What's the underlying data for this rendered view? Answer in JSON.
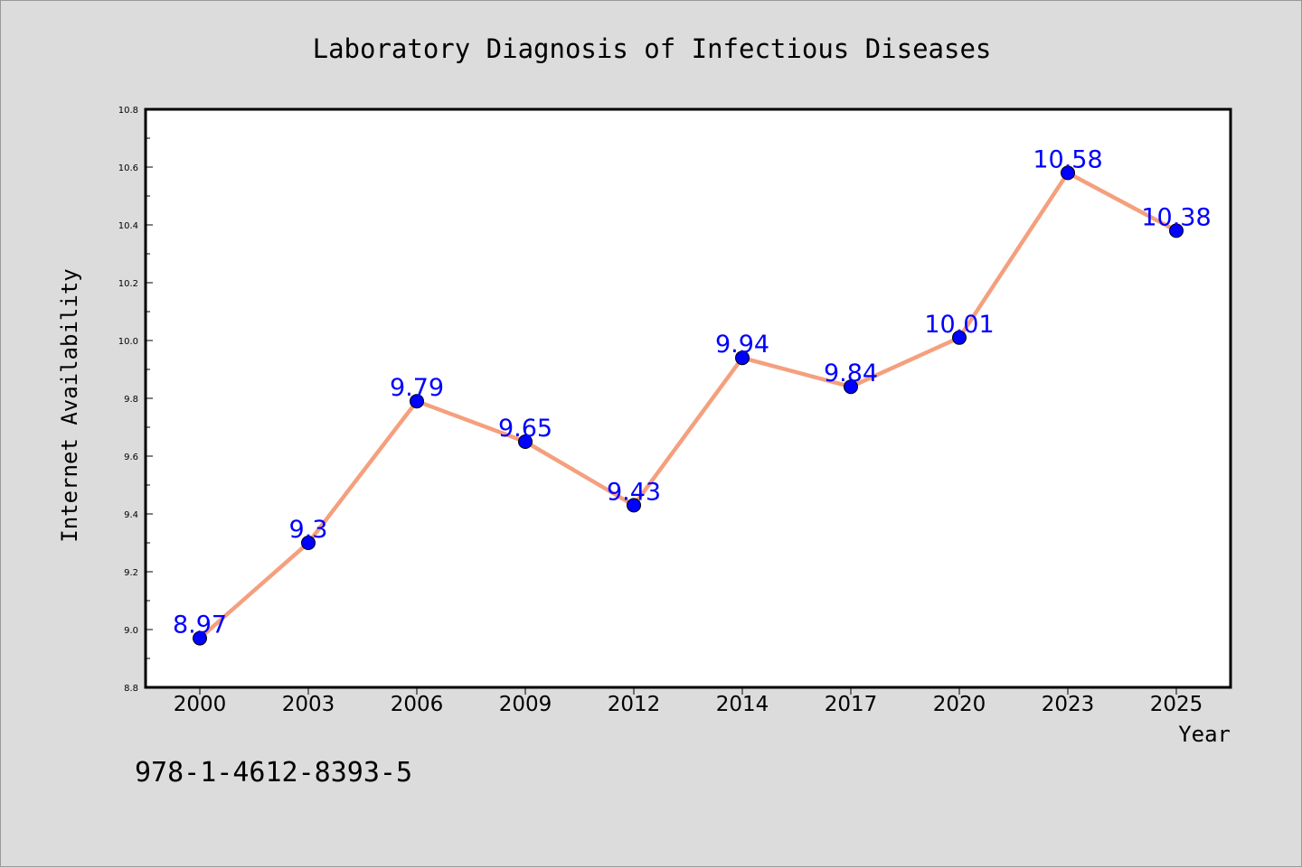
{
  "chart_data": {
    "type": "line",
    "title": "Laboratory Diagnosis of Infectious Diseases",
    "xlabel": "Year",
    "ylabel": "Internet Availability",
    "categories": [
      "2000",
      "2003",
      "2006",
      "2009",
      "2012",
      "2014",
      "2017",
      "2020",
      "2023",
      "2025"
    ],
    "series": [
      {
        "values": [
          8.97,
          9.3,
          9.79,
          9.65,
          9.43,
          9.94,
          9.84,
          10.01,
          10.58,
          10.38
        ],
        "labels": [
          "8.97",
          "9.3",
          "9.79",
          "9.65",
          "9.43",
          "9.94",
          "9.84",
          "10.01",
          "10.58",
          "10.38"
        ]
      }
    ],
    "ylim": [
      8.8,
      10.8
    ],
    "yticks": [
      "8.8",
      "9.0",
      "9.2",
      "9.4",
      "9.6",
      "9.8",
      "10.0",
      "10.2",
      "10.4",
      "10.6",
      "10.8"
    ],
    "grid": false,
    "line_color": "#f4a07e",
    "marker_color": "#0000ff",
    "label_color": "#0000ff",
    "background_color": "#dcdcdc",
    "plot_background_color": "#ffffff"
  },
  "annotations": {
    "isbn": "978-1-4612-8393-5"
  }
}
